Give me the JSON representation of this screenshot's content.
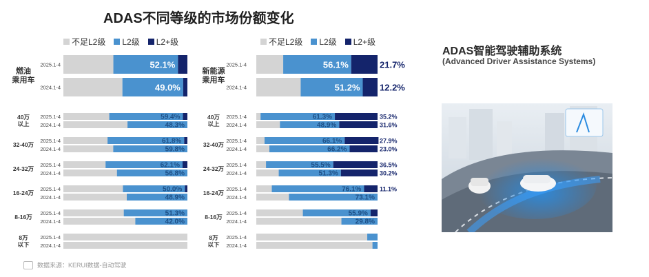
{
  "title": "ADAS不同等级的市场份额变化",
  "legend": [
    {
      "label": "不足L2级",
      "color": "#d4d4d4"
    },
    {
      "label": "L2级",
      "color": "#4a92cf"
    },
    {
      "label": "L2+级",
      "color": "#14246b"
    }
  ],
  "colors": {
    "below": "#d4d4d4",
    "l2": "#4a92cf",
    "l2plus": "#14246b"
  },
  "side": {
    "title": "ADAS智能驾驶辅助系统",
    "subtitle": "(Advanced Driver Assistance Systems)"
  },
  "source": "数据来源：KERUI数据-自动驾驶",
  "chart_data": [
    {
      "type": "bar",
      "subtype": "stacked-horizontal-100",
      "segments": [
        "不足L2级",
        "L2级",
        "L2+级"
      ],
      "groups": [
        {
          "label": "燃油\n乘用车",
          "bars": [
            {
              "period": "2025.1-4",
              "values": [
                40.3,
                52.1,
                7.6
              ],
              "labels": [
                "",
                "52.1%",
                ""
              ]
            },
            {
              "period": "2024.1-4",
              "values": [
                47.6,
                49.0,
                3.4
              ],
              "labels": [
                "",
                "49.0%",
                ""
              ]
            }
          ]
        },
        {
          "label": "40万\n以上",
          "bars": [
            {
              "period": "2025.1-4",
              "values": [
                37.0,
                59.4,
                3.6
              ],
              "labels": [
                "",
                "59.4%",
                ""
              ]
            },
            {
              "period": "2024.1-4",
              "values": [
                51.7,
                48.3,
                0
              ],
              "labels": [
                "",
                "48.3%",
                ""
              ]
            }
          ]
        },
        {
          "label": "32-40万",
          "bars": [
            {
              "period": "2025.1-4",
              "values": [
                35.6,
                61.8,
                2.6
              ],
              "labels": [
                "",
                "61.8%",
                ""
              ]
            },
            {
              "period": "2024.1-4",
              "values": [
                40.2,
                59.8,
                0
              ],
              "labels": [
                "",
                "59.8%",
                ""
              ]
            }
          ]
        },
        {
          "label": "24-32万",
          "bars": [
            {
              "period": "2025.1-4",
              "values": [
                34.0,
                62.1,
                3.9
              ],
              "labels": [
                "",
                "62.1%",
                ""
              ]
            },
            {
              "period": "2024.1-4",
              "values": [
                43.2,
                56.8,
                0
              ],
              "labels": [
                "",
                "56.8%",
                ""
              ]
            }
          ]
        },
        {
          "label": "16-24万",
          "bars": [
            {
              "period": "2025.1-4",
              "values": [
                48.0,
                50.0,
                2.0
              ],
              "labels": [
                "",
                "50.0%",
                ""
              ]
            },
            {
              "period": "2024.1-4",
              "values": [
                51.1,
                48.9,
                0
              ],
              "labels": [
                "",
                "48.9%",
                ""
              ]
            }
          ]
        },
        {
          "label": "8-16万",
          "bars": [
            {
              "period": "2025.1-4",
              "values": [
                48.7,
                51.3,
                0
              ],
              "labels": [
                "",
                "51.3%",
                ""
              ]
            },
            {
              "period": "2024.1-4",
              "values": [
                58.0,
                42.0,
                0
              ],
              "labels": [
                "",
                "42.0%",
                ""
              ]
            }
          ]
        },
        {
          "label": "8万\n以下",
          "bars": [
            {
              "period": "2025.1-4",
              "values": [
                100,
                0,
                0
              ],
              "labels": [
                "",
                "",
                ""
              ]
            },
            {
              "period": "2024.1-4",
              "values": [
                100,
                0,
                0
              ],
              "labels": [
                "",
                "",
                ""
              ]
            }
          ]
        }
      ]
    },
    {
      "type": "bar",
      "subtype": "stacked-horizontal-100",
      "segments": [
        "不足L2级",
        "L2级",
        "L2+级"
      ],
      "groups": [
        {
          "label": "新能源\n乘用车",
          "bars": [
            {
              "period": "2025.1-4",
              "values": [
                22.2,
                56.1,
                21.7
              ],
              "labels": [
                "",
                "56.1%",
                "21.7%"
              ]
            },
            {
              "period": "2024.1-4",
              "values": [
                36.6,
                51.2,
                12.2
              ],
              "labels": [
                "",
                "51.2%",
                "12.2%"
              ]
            }
          ]
        },
        {
          "label": "40万\n以上",
          "bars": [
            {
              "period": "2025.1-4",
              "values": [
                3.5,
                61.3,
                35.2
              ],
              "labels": [
                "",
                "61.3%",
                "35.2%"
              ]
            },
            {
              "period": "2024.1-4",
              "values": [
                19.5,
                48.9,
                31.6
              ],
              "labels": [
                "",
                "48.9%",
                "31.6%"
              ]
            }
          ]
        },
        {
          "label": "32-40万",
          "bars": [
            {
              "period": "2025.1-4",
              "values": [
                6.8,
                66.1,
                27.9
              ],
              "labels": [
                "",
                "66.1%",
                "27.9%"
              ]
            },
            {
              "period": "2024.1-4",
              "values": [
                10.8,
                66.2,
                23.0
              ],
              "labels": [
                "",
                "66.2%",
                "23.0%"
              ]
            }
          ]
        },
        {
          "label": "24-32万",
          "bars": [
            {
              "period": "2025.1-4",
              "values": [
                8.0,
                55.5,
                36.5
              ],
              "labels": [
                "",
                "55.5%",
                "36.5%"
              ]
            },
            {
              "period": "2024.1-4",
              "values": [
                18.5,
                51.3,
                30.2
              ],
              "labels": [
                "",
                "51.3%",
                "30.2%"
              ]
            }
          ]
        },
        {
          "label": "16-24万",
          "bars": [
            {
              "period": "2025.1-4",
              "values": [
                12.8,
                76.1,
                11.1
              ],
              "labels": [
                "",
                "76.1%",
                "11.1%"
              ]
            },
            {
              "period": "2024.1-4",
              "values": [
                26.9,
                73.1,
                0
              ],
              "labels": [
                "",
                "73.1%",
                ""
              ]
            }
          ]
        },
        {
          "label": "8-16万",
          "bars": [
            {
              "period": "2025.1-4",
              "values": [
                38.4,
                55.9,
                5.7
              ],
              "labels": [
                "",
                "55.9%",
                ""
              ]
            },
            {
              "period": "2024.1-4",
              "values": [
                70.2,
                29.8,
                0
              ],
              "labels": [
                "",
                "29.8%",
                ""
              ]
            }
          ]
        },
        {
          "label": "8万\n以下",
          "bars": [
            {
              "period": "2025.1-4",
              "values": [
                91.5,
                8.5,
                0
              ],
              "labels": [
                "",
                "",
                ""
              ]
            },
            {
              "period": "2024.1-4",
              "values": [
                95.8,
                4.2,
                0
              ],
              "labels": [
                "",
                "",
                ""
              ]
            }
          ]
        }
      ]
    }
  ]
}
